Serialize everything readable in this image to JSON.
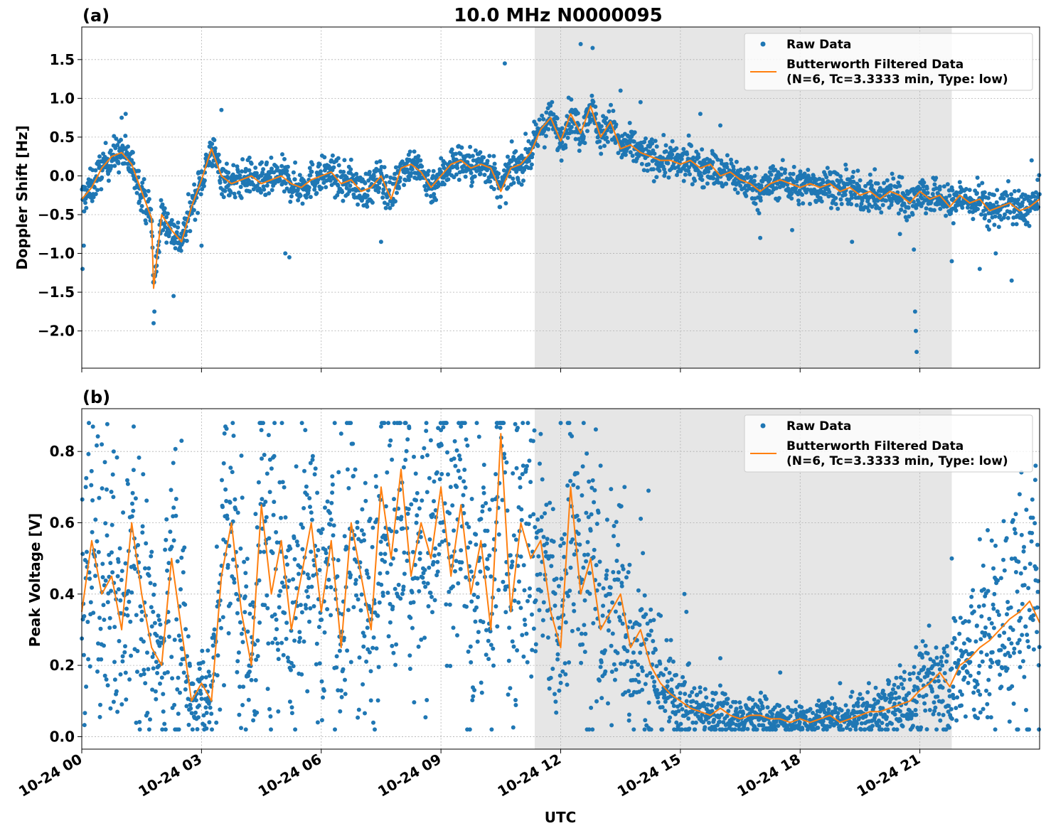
{
  "figure_title": "10.0 MHz N0000095",
  "colors": {
    "raw": "#1f77b4",
    "filtered": "#ff7f0e",
    "shade": "#e6e6e6",
    "grid": "#b0b0b0"
  },
  "legend": {
    "raw_label": "Raw Data",
    "filtered_line1": "Butterworth Filtered Data",
    "filtered_line2": "(N=6, Tc=3.3333 min, Type: low)",
    "placement": "top-right"
  },
  "x_axis": {
    "label": "UTC",
    "range_hours": [
      0,
      24
    ],
    "ticks": [
      0,
      3,
      6,
      9,
      12,
      15,
      18,
      21
    ],
    "tick_labels": [
      "10-24 00",
      "10-24 03",
      "10-24 06",
      "10-24 09",
      "10-24 12",
      "10-24 15",
      "10-24 18",
      "10-24 21"
    ]
  },
  "chart_data": [
    {
      "type": "scatter",
      "panel": "(a)",
      "title": "10.0 MHz N0000095",
      "xlabel": "",
      "ylabel": "Doppler Shift [Hz]",
      "xlim": [
        0,
        24
      ],
      "ylim": [
        -2.48,
        1.92
      ],
      "yticks": [
        1.5,
        1.0,
        0.5,
        0.0,
        -0.5,
        -1.0,
        -1.5,
        -2.0
      ],
      "ytick_labels": [
        "1.5",
        "1.0",
        "0.5",
        "0.0",
        "−0.5",
        "−1.0",
        "−1.5",
        "−2.0"
      ],
      "grid": true,
      "shaded_interval_hours": [
        11.35,
        21.8
      ],
      "series": [
        {
          "name": "Butterworth Filtered Data",
          "x": [
            0,
            0.25,
            0.5,
            0.75,
            1.0,
            1.25,
            1.5,
            1.75,
            1.8,
            2.0,
            2.25,
            2.5,
            2.75,
            3.0,
            3.25,
            3.5,
            3.75,
            4.0,
            4.25,
            4.5,
            4.75,
            5.0,
            5.25,
            5.5,
            5.75,
            6.0,
            6.25,
            6.5,
            6.75,
            7.0,
            7.25,
            7.5,
            7.75,
            8.0,
            8.25,
            8.5,
            8.75,
            9.0,
            9.25,
            9.5,
            9.75,
            10.0,
            10.25,
            10.5,
            10.75,
            11.0,
            11.25,
            11.5,
            11.75,
            12.0,
            12.25,
            12.5,
            12.75,
            13.0,
            13.25,
            13.5,
            13.75,
            14.0,
            14.25,
            14.5,
            14.75,
            15.0,
            15.25,
            15.5,
            15.75,
            16.0,
            16.25,
            16.5,
            16.75,
            17.0,
            17.25,
            17.5,
            17.75,
            18.0,
            18.25,
            18.5,
            18.75,
            19.0,
            19.25,
            19.5,
            19.75,
            20.0,
            20.25,
            20.5,
            20.75,
            21.0,
            21.25,
            21.5,
            21.75,
            22.0,
            22.25,
            22.5,
            22.75,
            23.0,
            23.25,
            23.5,
            23.75,
            24.0
          ],
          "y": [
            -0.3,
            -0.15,
            0.1,
            0.25,
            0.3,
            0.15,
            -0.2,
            -0.55,
            -1.45,
            -0.5,
            -0.7,
            -0.85,
            -0.4,
            -0.05,
            0.35,
            0.0,
            -0.1,
            -0.05,
            0.0,
            -0.1,
            -0.05,
            0.0,
            -0.1,
            -0.15,
            -0.05,
            0.0,
            0.05,
            -0.1,
            -0.05,
            -0.2,
            -0.15,
            0.0,
            -0.3,
            0.1,
            0.15,
            0.05,
            -0.15,
            0.0,
            0.15,
            0.2,
            0.1,
            0.15,
            0.1,
            -0.2,
            0.1,
            0.15,
            0.3,
            0.6,
            0.75,
            0.45,
            0.8,
            0.55,
            0.9,
            0.5,
            0.7,
            0.35,
            0.4,
            0.3,
            0.25,
            0.2,
            0.2,
            0.15,
            0.2,
            0.1,
            0.15,
            0.0,
            0.05,
            -0.05,
            -0.1,
            -0.2,
            -0.1,
            -0.05,
            -0.1,
            -0.15,
            -0.1,
            -0.15,
            -0.1,
            -0.2,
            -0.15,
            -0.25,
            -0.2,
            -0.3,
            -0.2,
            -0.25,
            -0.35,
            -0.2,
            -0.3,
            -0.25,
            -0.4,
            -0.25,
            -0.35,
            -0.3,
            -0.45,
            -0.4,
            -0.35,
            -0.45,
            -0.4,
            -0.3
          ]
        },
        {
          "name": "Raw Data",
          "x": [
            0.02,
            0.05,
            1.0,
            1.1,
            1.8,
            1.82,
            2.3,
            3.0,
            3.5,
            5.1,
            5.2,
            7.5,
            10.6,
            12.5,
            12.8,
            13.5,
            14.0,
            15.5,
            16.0,
            17.0,
            17.8,
            19.3,
            20.5,
            20.85,
            20.88,
            20.9,
            20.92,
            21.8,
            22.5,
            22.9,
            23.3,
            23.8
          ],
          "y": [
            -1.2,
            -0.9,
            0.75,
            0.8,
            -1.9,
            -1.75,
            -1.55,
            -0.9,
            0.85,
            -1.0,
            -1.05,
            -0.85,
            1.45,
            1.7,
            1.65,
            1.1,
            0.95,
            0.8,
            0.65,
            -0.8,
            -0.7,
            -0.85,
            -0.75,
            -0.95,
            -1.75,
            -2.0,
            -2.27,
            -1.1,
            -1.2,
            -1.0,
            -1.35,
            0.2
          ]
        }
      ]
    },
    {
      "type": "scatter",
      "panel": "(b)",
      "title": "",
      "xlabel": "UTC",
      "ylabel": "Peak Voltage [V]",
      "xlim": [
        0,
        24
      ],
      "ylim": [
        -0.035,
        0.92
      ],
      "yticks": [
        0.0,
        0.2,
        0.4,
        0.6,
        0.8
      ],
      "ytick_labels": [
        "0.0",
        "0.2",
        "0.4",
        "0.6",
        "0.8"
      ],
      "grid": true,
      "shaded_interval_hours": [
        11.35,
        21.8
      ],
      "series": [
        {
          "name": "Butterworth Filtered Data",
          "x": [
            0,
            0.25,
            0.5,
            0.75,
            1.0,
            1.25,
            1.5,
            1.75,
            2.0,
            2.25,
            2.5,
            2.75,
            3.0,
            3.25,
            3.5,
            3.75,
            4.0,
            4.25,
            4.5,
            4.75,
            5.0,
            5.25,
            5.5,
            5.75,
            6.0,
            6.25,
            6.5,
            6.75,
            7.0,
            7.25,
            7.5,
            7.75,
            8.0,
            8.25,
            8.5,
            8.75,
            9.0,
            9.25,
            9.5,
            9.75,
            10.0,
            10.25,
            10.5,
            10.75,
            11.0,
            11.25,
            11.5,
            11.75,
            12.0,
            12.25,
            12.5,
            12.75,
            13.0,
            13.25,
            13.5,
            13.75,
            14.0,
            14.25,
            14.5,
            14.75,
            15.0,
            15.25,
            15.5,
            15.75,
            16.0,
            16.25,
            16.5,
            16.75,
            17.0,
            17.25,
            17.5,
            17.75,
            18.0,
            18.25,
            18.5,
            18.75,
            19.0,
            19.25,
            19.5,
            19.75,
            20.0,
            20.25,
            20.5,
            20.75,
            21.0,
            21.25,
            21.5,
            21.75,
            22.0,
            22.25,
            22.5,
            22.75,
            23.0,
            23.25,
            23.5,
            23.75,
            24.0
          ],
          "y": [
            0.35,
            0.55,
            0.4,
            0.45,
            0.3,
            0.6,
            0.4,
            0.25,
            0.2,
            0.5,
            0.3,
            0.1,
            0.15,
            0.1,
            0.45,
            0.6,
            0.35,
            0.2,
            0.65,
            0.4,
            0.55,
            0.3,
            0.45,
            0.6,
            0.35,
            0.55,
            0.25,
            0.6,
            0.45,
            0.3,
            0.7,
            0.5,
            0.75,
            0.45,
            0.6,
            0.5,
            0.7,
            0.45,
            0.65,
            0.4,
            0.55,
            0.3,
            0.85,
            0.35,
            0.6,
            0.5,
            0.55,
            0.35,
            0.25,
            0.7,
            0.4,
            0.5,
            0.3,
            0.35,
            0.4,
            0.25,
            0.3,
            0.2,
            0.15,
            0.12,
            0.1,
            0.08,
            0.07,
            0.06,
            0.08,
            0.06,
            0.05,
            0.06,
            0.06,
            0.05,
            0.05,
            0.04,
            0.05,
            0.04,
            0.05,
            0.06,
            0.04,
            0.05,
            0.06,
            0.07,
            0.07,
            0.08,
            0.09,
            0.1,
            0.13,
            0.15,
            0.18,
            0.14,
            0.2,
            0.22,
            0.25,
            0.27,
            0.3,
            0.33,
            0.35,
            0.38,
            0.32
          ]
        },
        {
          "name": "Raw Data",
          "x": [
            0.1,
            0.5,
            0.8,
            1.3,
            2.5,
            3.6,
            4.5,
            5.6,
            6.5,
            7.5,
            8.2,
            9.0,
            9.5,
            10.4,
            10.9,
            12.0,
            13.0,
            13.6,
            14.2,
            15.1,
            15.15,
            16.0,
            17.5,
            19.0,
            20.5,
            21.8,
            22.8,
            23.5,
            23.9
          ],
          "y": [
            0.7,
            0.82,
            0.8,
            0.87,
            0.83,
            0.87,
            0.86,
            0.86,
            0.85,
            0.87,
            0.87,
            0.86,
            0.87,
            0.88,
            0.86,
            0.88,
            0.76,
            0.7,
            0.69,
            0.4,
            0.35,
            0.22,
            0.18,
            0.15,
            0.2,
            0.5,
            0.55,
            0.68,
            0.76
          ]
        }
      ]
    }
  ]
}
